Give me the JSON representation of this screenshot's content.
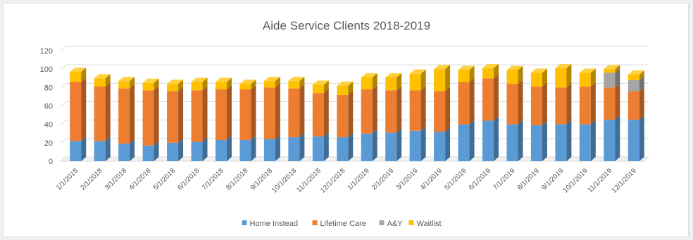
{
  "chart_data": {
    "type": "bar",
    "stacked": true,
    "style": "3d-column",
    "title": "Aide Service Clients 2018-2019",
    "xlabel": "",
    "ylabel": "",
    "ylim": [
      0,
      120
    ],
    "yticks": [
      0,
      20,
      40,
      60,
      80,
      100,
      120
    ],
    "grid": true,
    "legend_position": "bottom",
    "categories": [
      "1/1/2018",
      "2/1/2018",
      "3/1/2018",
      "4/1/2018",
      "5/1/2018",
      "6/1/2018",
      "7/1/2018",
      "8/1/2018",
      "9/1/2018",
      "10/1/2018",
      "11/1/2018",
      "12/1/2018",
      "1/1/2019",
      "2/1/2019",
      "3/1/2019",
      "4/1/2019",
      "5/1/2019",
      "6/1/2019",
      "7/1/2019",
      "8/1/2019",
      "9/1/2019",
      "10/1/2019",
      "11/1/2019",
      "12/1/2019"
    ],
    "series": [
      {
        "name": "Home Instead",
        "color": "#5b9bd5",
        "values": [
          22,
          22,
          19,
          17,
          20,
          21,
          23,
          23,
          24,
          26,
          27,
          26,
          30,
          31,
          33,
          32,
          40,
          44,
          40,
          39,
          40,
          40,
          45,
          45
        ]
      },
      {
        "name": "Lifetime Care",
        "color": "#ed7d31",
        "values": [
          64,
          59,
          60,
          60,
          56,
          56,
          55,
          55,
          56,
          53,
          47,
          46,
          48,
          46,
          44,
          44,
          46,
          46,
          44,
          42,
          40,
          41,
          35,
          31
        ]
      },
      {
        "name": "A&Y",
        "color": "#a5a5a5",
        "values": [
          0,
          0,
          0,
          0,
          0,
          0,
          0,
          0,
          0,
          0,
          0,
          0,
          0,
          0,
          0,
          0,
          0,
          0,
          0,
          0,
          0,
          0,
          16,
          12
        ]
      },
      {
        "name": "Waitlist",
        "color": "#ffc000",
        "values": [
          11,
          9,
          8,
          8,
          8,
          9,
          8,
          6,
          7,
          8,
          9,
          10,
          13,
          14,
          18,
          24,
          13,
          11,
          15,
          15,
          21,
          15,
          4,
          6
        ]
      }
    ]
  }
}
